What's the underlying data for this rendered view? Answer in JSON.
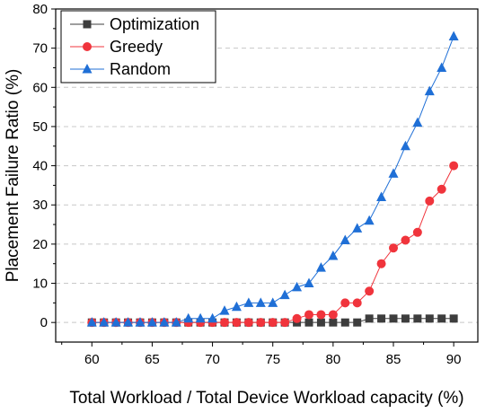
{
  "chart_data": {
    "type": "line",
    "xlabel": "Total Workload / Total Device Workload capacity (%)",
    "ylabel": "Placement Failure Ratio (%)",
    "xlim": [
      57,
      92
    ],
    "ylim": [
      -5,
      80
    ],
    "x_ticks": [
      60,
      65,
      70,
      75,
      80,
      85,
      90
    ],
    "y_ticks": [
      0,
      10,
      20,
      30,
      40,
      50,
      60,
      70,
      80
    ],
    "grid": "horizontal dashed",
    "legend_position": "top-left",
    "x": [
      60,
      61,
      62,
      63,
      64,
      65,
      66,
      67,
      68,
      69,
      70,
      71,
      72,
      73,
      74,
      75,
      76,
      77,
      78,
      79,
      80,
      81,
      82,
      83,
      84,
      85,
      86,
      87,
      88,
      89,
      90
    ],
    "series": [
      {
        "name": "Optimization",
        "marker": "square",
        "color": "#3d3d3d",
        "values": [
          0,
          0,
          0,
          0,
          0,
          0,
          0,
          0,
          0,
          0,
          0,
          0,
          0,
          0,
          0,
          0,
          0,
          0,
          0,
          0,
          0,
          0,
          0,
          1,
          1,
          1,
          1,
          1,
          1,
          1,
          1
        ]
      },
      {
        "name": "Greedy",
        "marker": "circle",
        "color": "#f0343c",
        "values": [
          0,
          0,
          0,
          0,
          0,
          0,
          0,
          0,
          0,
          0,
          0,
          0,
          0,
          0,
          0,
          0,
          0,
          1,
          2,
          2,
          2,
          5,
          5,
          8,
          15,
          19,
          21,
          23,
          31,
          34,
          40
        ]
      },
      {
        "name": "Random",
        "marker": "triangle",
        "color": "#1f6fd6",
        "values": [
          0,
          0,
          0,
          0,
          0,
          0,
          0,
          0,
          1,
          1,
          1,
          3,
          4,
          5,
          5,
          5,
          7,
          9,
          10,
          14,
          17,
          21,
          24,
          26,
          32,
          38,
          45,
          51,
          59,
          65,
          73
        ]
      }
    ]
  }
}
